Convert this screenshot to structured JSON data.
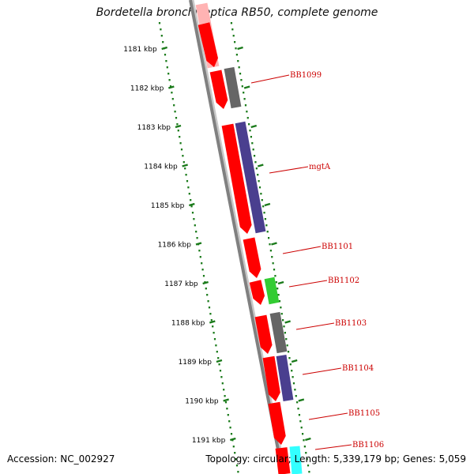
{
  "title": "Bordetella bronchiseptica RB50, complete genome",
  "footer": {
    "accession": "Accession: NC_002927",
    "summary": "Topology: circular; Length: 5,339,179 bp; Genes: 5,059"
  },
  "ticks": [
    {
      "label": "1181 kbp"
    },
    {
      "label": "1182 kbp"
    },
    {
      "label": "1183 kbp"
    },
    {
      "label": "1184 kbp"
    },
    {
      "label": "1185 kbp"
    },
    {
      "label": "1186 kbp"
    },
    {
      "label": "1187 kbp"
    },
    {
      "label": "1188 kbp"
    },
    {
      "label": "1189 kbp"
    },
    {
      "label": "1190 kbp"
    },
    {
      "label": "1191 kbp"
    }
  ],
  "gene_labels": [
    "BB1099",
    "mgtA",
    "BB1101",
    "BB1102",
    "BB1103",
    "BB1104",
    "BB1105",
    "BB1106"
  ],
  "colors": {
    "cds": "#ff0000",
    "cds_faded": "#ffb3b3",
    "gray_feature": "#666666",
    "blue_feature": "#4a3f8f",
    "green_feature": "#33cc33",
    "cyan_feature": "#33ffff",
    "backbone": "#808080",
    "tick": "#1a7a1a",
    "label": "#cc0000"
  }
}
